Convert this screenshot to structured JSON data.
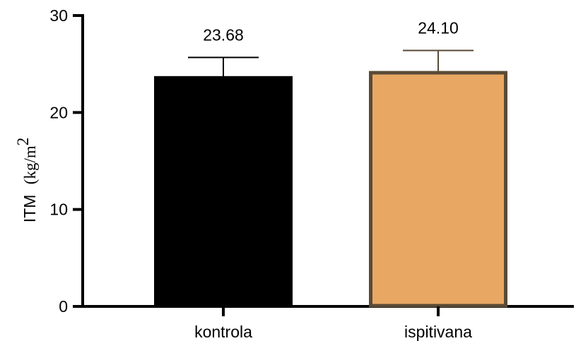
{
  "chart_data": {
    "type": "bar",
    "categories": [
      "kontrola",
      "ispitivana"
    ],
    "values": [
      23.68,
      24.1
    ],
    "errors": [
      2.0,
      2.3
    ],
    "data_labels": [
      "23.68",
      "24.10"
    ],
    "ylabel_text": "ITM",
    "ylabel_unit": "(kg/m",
    "ylabel_sup": "2",
    "ylim": [
      0,
      30
    ],
    "yticks": [
      "0",
      "10",
      "20",
      "30"
    ],
    "grid": false,
    "colors": {
      "bar_fill": [
        "#000000",
        "#e8a864"
      ],
      "bar_stroke": [
        "#000000",
        "#5a4a36"
      ],
      "error_bar": [
        "#000000",
        "#5a4a36"
      ]
    }
  }
}
